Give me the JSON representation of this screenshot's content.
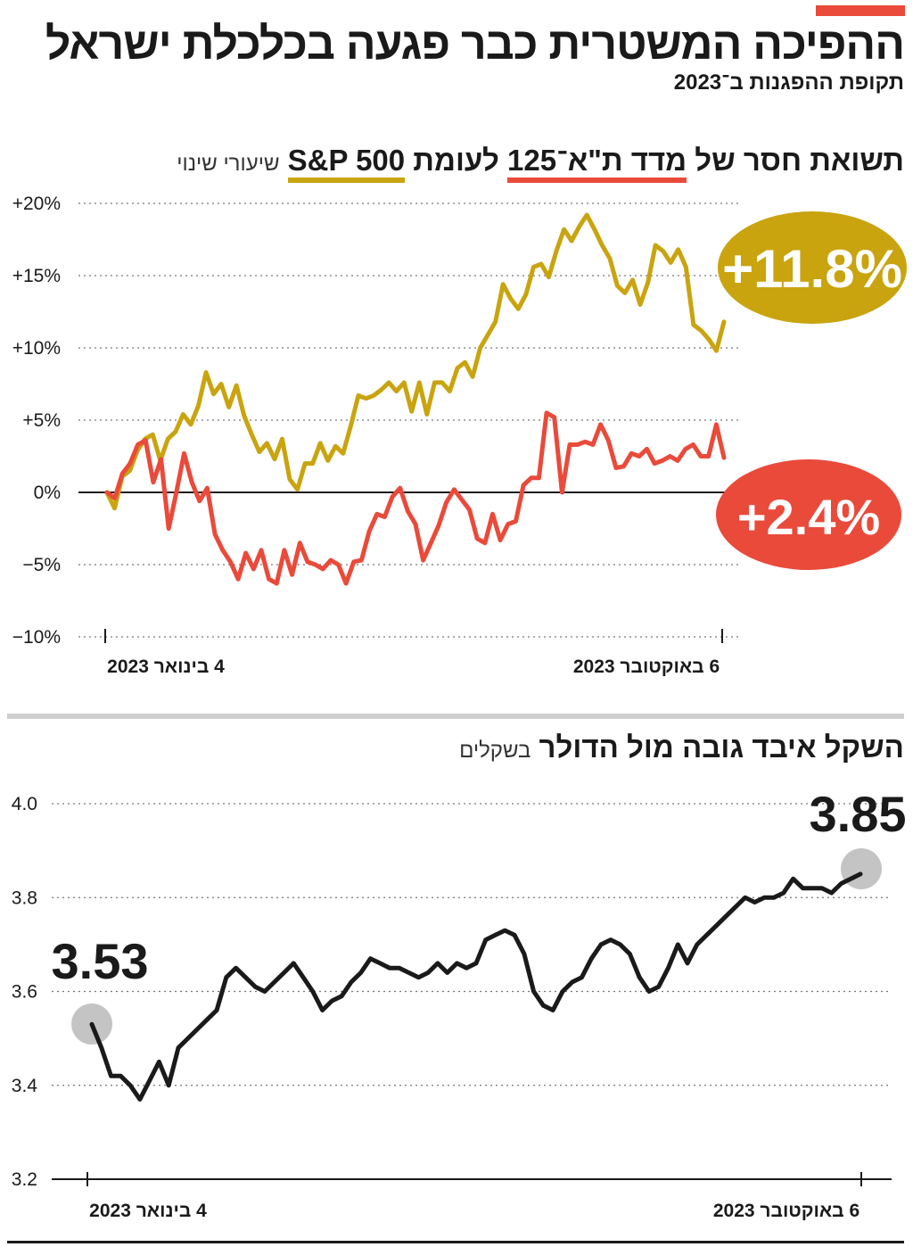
{
  "header": {
    "title": "ההפיכה המשטרית כבר פגעה בכלכלת ישראל",
    "subtitle": "תקופת ההפגנות ב־2023"
  },
  "chart1": {
    "title_part1": "תשואת חסר של",
    "series_ta": "מדד ת\"א־125",
    "title_part2": "לעומת",
    "series_sp": "S&P 500",
    "unit": "שיעורי שינוי",
    "sp_final_label": "+11.8%",
    "ta_final_label": "+2.4%",
    "x_start_label": "4 בינואר 2023",
    "x_end_label": "6 באוקטובר 2023",
    "colors": {
      "sp": "#c9a40f",
      "ta": "#ea4a3a"
    }
  },
  "chart2": {
    "title": "השקל איבד גובה מול הדולר",
    "unit": "בשקלים",
    "start_label": "3.53",
    "end_label": "3.85",
    "x_start_label": "4 בינואר 2023",
    "x_end_label": "6 באוקטובר 2023",
    "color": "#1a1a1a"
  },
  "chart_data": [
    {
      "type": "line",
      "title": "תשואת חסר של מדד ת\"א־125 לעומת S&P 500",
      "ylabel": "שיעורי שינוי",
      "ylim": [
        -10,
        20
      ],
      "yticks": [
        {
          "v": 20,
          "label": "+20%"
        },
        {
          "v": 15,
          "label": "+15%"
        },
        {
          "v": 10,
          "label": "+10%"
        },
        {
          "v": 5,
          "label": "+5%"
        },
        {
          "v": 0,
          "label": "0%"
        },
        {
          "v": -5,
          "label": "−5%"
        },
        {
          "v": -10,
          "label": "−10%"
        }
      ],
      "x_range": [
        "4 בינואר 2023",
        "6 באוקטובר 2023"
      ],
      "grid": true,
      "series": [
        {
          "name": "S&P 500",
          "color": "#c9a40f",
          "values": [
            0,
            -1.1,
            1.1,
            1.5,
            2.9,
            3.7,
            4.0,
            2.2,
            3.7,
            4.2,
            5.4,
            4.7,
            6.0,
            8.3,
            6.8,
            7.5,
            5.9,
            7.4,
            5.3,
            4.0,
            2.8,
            3.4,
            2.3,
            3.7,
            0.9,
            0.2,
            2.0,
            2.0,
            3.4,
            2.2,
            3.2,
            2.7,
            4.6,
            6.7,
            6.5,
            6.7,
            7.1,
            7.6,
            7.0,
            7.6,
            5.6,
            7.6,
            5.4,
            7.6,
            7.6,
            7.0,
            8.6,
            9.0,
            8.0,
            10.0,
            10.9,
            11.8,
            14.4,
            13.4,
            12.7,
            13.7,
            15.6,
            15.8,
            14.9,
            16.7,
            18.2,
            17.4,
            18.4,
            19.2,
            18.2,
            17.1,
            16.2,
            14.3,
            13.8,
            14.7,
            13.0,
            14.5,
            17.1,
            16.7,
            15.9,
            16.8,
            15.6,
            11.6,
            11.2,
            10.6,
            9.8,
            11.8
          ]
        },
        {
          "name": "מדד ת\"א־125",
          "color": "#ea4a3a",
          "values": [
            0,
            -0.4,
            1.3,
            2.0,
            3.3,
            3.6,
            0.7,
            2.3,
            -2.5,
            0,
            2.7,
            0.7,
            -0.6,
            0.3,
            -2.9,
            -4.0,
            -4.8,
            -6.0,
            -4.2,
            -5.3,
            -4.0,
            -6.0,
            -6.3,
            -4.0,
            -5.7,
            -3.5,
            -4.8,
            -5.0,
            -5.3,
            -4.7,
            -5.0,
            -6.3,
            -4.8,
            -4.7,
            -2.7,
            -1.5,
            -1.7,
            -0.3,
            0.3,
            -1.3,
            -2.2,
            -4.7,
            -3.5,
            -2.3,
            -0.7,
            0.2,
            -0.5,
            -1.2,
            -3.2,
            -3.5,
            -1.5,
            -3.3,
            -2.2,
            -2.0,
            0.5,
            1.0,
            1.0,
            5.5,
            5.2,
            0,
            3.3,
            3.3,
            3.5,
            3.3,
            4.7,
            3.6,
            1.7,
            1.8,
            2.7,
            2.5,
            3.0,
            2.0,
            2.2,
            2.5,
            2.2,
            3.0,
            3.3,
            2.5,
            2.5,
            4.7,
            2.4
          ]
        }
      ]
    },
    {
      "type": "line",
      "title": "השקל איבד גובה מול הדולר",
      "ylabel": "בשקלים",
      "ylim": [
        3.2,
        4.0
      ],
      "yticks": [
        {
          "v": 4.0,
          "label": "4.0"
        },
        {
          "v": 3.8,
          "label": "3.8"
        },
        {
          "v": 3.6,
          "label": "3.6"
        },
        {
          "v": 3.4,
          "label": "3.4"
        },
        {
          "v": 3.2,
          "label": "3.2"
        }
      ],
      "x_range": [
        "4 בינואר 2023",
        "6 באוקטובר 2023"
      ],
      "grid": true,
      "series": [
        {
          "name": "",
          "color": "#1a1a1a",
          "values": [
            3.53,
            3.48,
            3.42,
            3.42,
            3.4,
            3.37,
            3.41,
            3.45,
            3.4,
            3.48,
            3.5,
            3.52,
            3.54,
            3.56,
            3.63,
            3.65,
            3.63,
            3.61,
            3.6,
            3.62,
            3.64,
            3.66,
            3.63,
            3.6,
            3.56,
            3.58,
            3.59,
            3.62,
            3.64,
            3.67,
            3.66,
            3.65,
            3.65,
            3.64,
            3.63,
            3.64,
            3.66,
            3.64,
            3.66,
            3.65,
            3.66,
            3.71,
            3.72,
            3.73,
            3.72,
            3.68,
            3.6,
            3.57,
            3.56,
            3.6,
            3.62,
            3.63,
            3.67,
            3.7,
            3.71,
            3.7,
            3.68,
            3.63,
            3.6,
            3.61,
            3.65,
            3.7,
            3.66,
            3.7,
            3.72,
            3.74,
            3.76,
            3.78,
            3.8,
            3.79,
            3.8,
            3.8,
            3.81,
            3.84,
            3.82,
            3.82,
            3.82,
            3.81,
            3.83,
            3.84,
            3.85
          ]
        }
      ]
    }
  ]
}
